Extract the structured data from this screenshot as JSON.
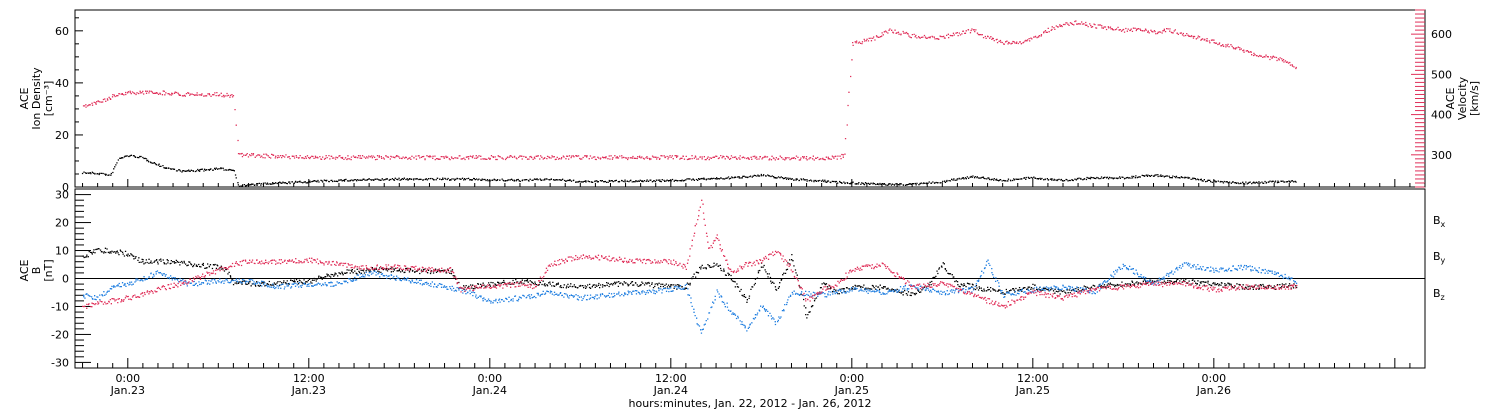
{
  "colors": {
    "black": "#000000",
    "blue": "#1f7ee0",
    "red": "#e0305a"
  },
  "chart_data": [
    {
      "type": "scatter",
      "panel": "top",
      "ylabel": [
        "ACE",
        "Ion Density",
        "[cm⁻³]"
      ],
      "ylabel_right": [
        "ACE",
        "Velocity",
        "[km/s]"
      ],
      "ylim": [
        0,
        68
      ],
      "yticks": [
        0,
        20,
        40,
        60
      ],
      "ylim_right": [
        220,
        660
      ],
      "yticks_right": [
        300,
        400,
        500,
        600
      ],
      "series": [
        {
          "measure": "ion density",
          "color": "#000000",
          "axis": "left",
          "points": [
            [
              -3.0,
              5.5
            ],
            [
              -1.6,
              5.0
            ],
            [
              -1.2,
              4.2
            ],
            [
              -0.6,
              11.0
            ],
            [
              0.0,
              12.0
            ],
            [
              0.8,
              11.5
            ],
            [
              1.6,
              9.5
            ],
            [
              2.4,
              7.5
            ],
            [
              3.6,
              6.0
            ],
            [
              5.0,
              6.5
            ],
            [
              6.0,
              7.0
            ],
            [
              7.0,
              6.5
            ],
            [
              7.3,
              0.5
            ],
            [
              10.0,
              1.5
            ],
            [
              14.0,
              2.5
            ],
            [
              18.0,
              3.0
            ],
            [
              22.0,
              3.0
            ],
            [
              26.0,
              2.5
            ],
            [
              28.0,
              3.0
            ],
            [
              30.0,
              2.0
            ],
            [
              36.0,
              2.5
            ],
            [
              40.0,
              3.5
            ],
            [
              42.0,
              4.5
            ],
            [
              44.0,
              3.0
            ],
            [
              48.0,
              1.5
            ],
            [
              50.0,
              1.0
            ],
            [
              52.0,
              1.0
            ],
            [
              54.0,
              2.0
            ],
            [
              56.0,
              4.0
            ],
            [
              58.0,
              2.5
            ],
            [
              60.0,
              3.5
            ],
            [
              62.0,
              2.5
            ],
            [
              64.0,
              3.5
            ],
            [
              66.0,
              3.5
            ],
            [
              68.0,
              4.5
            ],
            [
              70.0,
              3.5
            ],
            [
              72.0,
              2.0
            ],
            [
              74.0,
              1.5
            ],
            [
              76.0,
              2.0
            ],
            [
              77.5,
              2.0
            ]
          ]
        },
        {
          "measure": "velocity",
          "color": "#e0305a",
          "axis": "right",
          "points": [
            [
              -3.0,
              420
            ],
            [
              -2.0,
              430
            ],
            [
              -1.0,
              445
            ],
            [
              0.0,
              455
            ],
            [
              2.0,
              455
            ],
            [
              4.0,
              450
            ],
            [
              6.0,
              450
            ],
            [
              7.0,
              445
            ],
            [
              7.3,
              300
            ],
            [
              12.0,
              293
            ],
            [
              18.0,
              293
            ],
            [
              24.0,
              293
            ],
            [
              30.0,
              293
            ],
            [
              36.0,
              293
            ],
            [
              40.0,
              293
            ],
            [
              44.0,
              292
            ],
            [
              46.0,
              292
            ],
            [
              47.0,
              292
            ],
            [
              47.5,
              300
            ],
            [
              48.0,
              575
            ],
            [
              49.5,
              590
            ],
            [
              50.5,
              610
            ],
            [
              52.0,
              595
            ],
            [
              53.5,
              590
            ],
            [
              55.0,
              600
            ],
            [
              56.0,
              610
            ],
            [
              57.0,
              590
            ],
            [
              58.0,
              580
            ],
            [
              59.0,
              575
            ],
            [
              60.0,
              590
            ],
            [
              61.0,
              610
            ],
            [
              62.0,
              625
            ],
            [
              63.0,
              630
            ],
            [
              64.0,
              620
            ],
            [
              65.0,
              615
            ],
            [
              66.0,
              610
            ],
            [
              67.0,
              610
            ],
            [
              68.0,
              605
            ],
            [
              69.0,
              610
            ],
            [
              70.0,
              600
            ],
            [
              71.0,
              590
            ],
            [
              72.0,
              580
            ],
            [
              73.0,
              570
            ],
            [
              74.0,
              560
            ],
            [
              75.0,
              545
            ],
            [
              76.0,
              540
            ],
            [
              77.0,
              530
            ],
            [
              77.5,
              510
            ]
          ]
        }
      ]
    },
    {
      "type": "scatter",
      "panel": "bottom",
      "ylabel": [
        "ACE",
        "B",
        "[nT]"
      ],
      "ylim": [
        -32,
        32
      ],
      "yticks": [
        -30,
        -20,
        -10,
        0,
        10,
        20,
        30
      ],
      "legend_position": "right",
      "series": [
        {
          "name": "Bx",
          "color": "#000000",
          "points": [
            [
              -3.0,
              8.0
            ],
            [
              -2.0,
              10.0
            ],
            [
              -1.0,
              10.0
            ],
            [
              0.0,
              8.5
            ],
            [
              1.0,
              6.0
            ],
            [
              3.0,
              6.0
            ],
            [
              5.0,
              4.5
            ],
            [
              6.0,
              4.0
            ],
            [
              6.6,
              2.5
            ],
            [
              7.0,
              -1.5
            ],
            [
              9.0,
              -2.0
            ],
            [
              12.0,
              -1.0
            ],
            [
              14.0,
              2.0
            ],
            [
              16.0,
              3.0
            ],
            [
              18.0,
              3.0
            ],
            [
              20.0,
              2.5
            ],
            [
              21.5,
              2.5
            ],
            [
              22.0,
              -3.5
            ],
            [
              24.0,
              -2.0
            ],
            [
              26.0,
              -1.0
            ],
            [
              28.0,
              -2.0
            ],
            [
              30.0,
              -3.0
            ],
            [
              32.0,
              -2.0
            ],
            [
              34.0,
              -2.0
            ],
            [
              36.0,
              -3.0
            ],
            [
              37.0,
              -3.0
            ],
            [
              38.0,
              4.0
            ],
            [
              39.0,
              5.0
            ],
            [
              40.0,
              0.0
            ],
            [
              41.0,
              -8.0
            ],
            [
              42.0,
              5.0
            ],
            [
              43.0,
              -4.0
            ],
            [
              44.0,
              8.0
            ],
            [
              45.0,
              -14.0
            ],
            [
              46.0,
              -2.0
            ],
            [
              47.0,
              -5.0
            ],
            [
              48.0,
              -3.0
            ],
            [
              50.0,
              -3.0
            ],
            [
              52.0,
              -6.0
            ],
            [
              53.0,
              -3.0
            ],
            [
              54.0,
              5.0
            ],
            [
              55.0,
              -2.0
            ],
            [
              56.0,
              -3.0
            ],
            [
              58.0,
              -5.0
            ],
            [
              60.0,
              -3.0
            ],
            [
              62.0,
              -5.0
            ],
            [
              64.0,
              -3.0
            ],
            [
              66.0,
              -2.0
            ],
            [
              68.0,
              -1.0
            ],
            [
              70.0,
              -1.0
            ],
            [
              72.0,
              -2.0
            ],
            [
              74.0,
              -3.0
            ],
            [
              76.0,
              -3.0
            ],
            [
              77.5,
              -2.5
            ]
          ]
        },
        {
          "name": "By",
          "color": "#1f7ee0",
          "points": [
            [
              -3.0,
              -6.0
            ],
            [
              -2.0,
              -7.0
            ],
            [
              -1.0,
              -3.0
            ],
            [
              0.0,
              -2.0
            ],
            [
              1.0,
              0.0
            ],
            [
              2.0,
              2.0
            ],
            [
              3.0,
              0.0
            ],
            [
              4.0,
              -2.0
            ],
            [
              6.0,
              -1.0
            ],
            [
              8.0,
              -1.0
            ],
            [
              10.0,
              -3.0
            ],
            [
              12.0,
              -2.0
            ],
            [
              14.0,
              -2.0
            ],
            [
              16.0,
              2.0
            ],
            [
              18.0,
              0.0
            ],
            [
              20.0,
              -2.0
            ],
            [
              22.0,
              -4.0
            ],
            [
              24.0,
              -8.0
            ],
            [
              26.0,
              -7.0
            ],
            [
              28.0,
              -5.0
            ],
            [
              30.0,
              -7.0
            ],
            [
              32.0,
              -6.0
            ],
            [
              34.0,
              -5.0
            ],
            [
              36.0,
              -4.0
            ],
            [
              37.0,
              -3.0
            ],
            [
              38.0,
              -20.0
            ],
            [
              39.0,
              -5.0
            ],
            [
              40.0,
              -12.0
            ],
            [
              41.0,
              -18.0
            ],
            [
              42.0,
              -10.0
            ],
            [
              43.0,
              -16.0
            ],
            [
              44.0,
              -5.0
            ],
            [
              46.0,
              -6.0
            ],
            [
              48.0,
              -4.0
            ],
            [
              50.0,
              -5.0
            ],
            [
              52.0,
              -3.0
            ],
            [
              54.0,
              -5.0
            ],
            [
              56.0,
              -4.0
            ],
            [
              57.0,
              6.0
            ],
            [
              58.0,
              -6.0
            ],
            [
              60.0,
              -4.0
            ],
            [
              62.0,
              -3.0
            ],
            [
              64.0,
              -5.0
            ],
            [
              66.0,
              5.0
            ],
            [
              68.0,
              -2.0
            ],
            [
              70.0,
              5.0
            ],
            [
              72.0,
              3.0
            ],
            [
              74.0,
              4.0
            ],
            [
              76.0,
              2.0
            ],
            [
              77.5,
              -1.0
            ]
          ]
        },
        {
          "name": "Bz",
          "color": "#e0305a",
          "points": [
            [
              -3.0,
              -10.0
            ],
            [
              -2.0,
              -9.0
            ],
            [
              -1.0,
              -8.0
            ],
            [
              0.0,
              -7.0
            ],
            [
              2.0,
              -4.0
            ],
            [
              4.0,
              -1.0
            ],
            [
              6.0,
              3.0
            ],
            [
              7.0,
              5.0
            ],
            [
              8.0,
              6.0
            ],
            [
              10.0,
              6.0
            ],
            [
              12.0,
              6.5
            ],
            [
              14.0,
              5.0
            ],
            [
              16.0,
              4.0
            ],
            [
              18.0,
              4.0
            ],
            [
              20.0,
              3.0
            ],
            [
              21.5,
              3.0
            ],
            [
              22.0,
              -4.0
            ],
            [
              24.0,
              -3.0
            ],
            [
              26.0,
              -2.0
            ],
            [
              27.0,
              -3.0
            ],
            [
              28.0,
              5.0
            ],
            [
              30.0,
              8.0
            ],
            [
              32.0,
              7.0
            ],
            [
              34.0,
              6.0
            ],
            [
              36.0,
              6.0
            ],
            [
              37.0,
              4.0
            ],
            [
              38.0,
              28.0
            ],
            [
              38.5,
              10.0
            ],
            [
              39.0,
              15.0
            ],
            [
              40.0,
              2.0
            ],
            [
              41.0,
              5.0
            ],
            [
              42.0,
              6.0
            ],
            [
              43.0,
              10.0
            ],
            [
              44.0,
              3.0
            ],
            [
              45.0,
              -8.0
            ],
            [
              46.0,
              -4.0
            ],
            [
              47.0,
              -2.0
            ],
            [
              48.0,
              3.0
            ],
            [
              50.0,
              5.0
            ],
            [
              52.0,
              -3.0
            ],
            [
              54.0,
              -2.0
            ],
            [
              56.0,
              -6.0
            ],
            [
              58.0,
              -10.0
            ],
            [
              60.0,
              -5.0
            ],
            [
              62.0,
              -7.0
            ],
            [
              64.0,
              -4.0
            ],
            [
              66.0,
              -3.0
            ],
            [
              68.0,
              -2.0
            ],
            [
              70.0,
              -2.0
            ],
            [
              72.0,
              -4.0
            ],
            [
              74.0,
              -3.0
            ],
            [
              76.0,
              -3.0
            ],
            [
              77.5,
              -3.0
            ]
          ]
        }
      ]
    }
  ],
  "x_axis": {
    "unit": "hours since Jan. 23 0:00",
    "xlim": [
      -3.5,
      86
    ],
    "ticks": [
      {
        "hour": 0,
        "time": "0:00",
        "date": "Jan.23"
      },
      {
        "hour": 12,
        "time": "12:00",
        "date": "Jan.23"
      },
      {
        "hour": 24,
        "time": "0:00",
        "date": "Jan.24"
      },
      {
        "hour": 36,
        "time": "12:00",
        "date": "Jan.24"
      },
      {
        "hour": 48,
        "time": "0:00",
        "date": "Jan.25"
      },
      {
        "hour": 60,
        "time": "12:00",
        "date": "Jan.25"
      },
      {
        "hour": 72,
        "time": "0:00",
        "date": "Jan.26"
      }
    ],
    "xlabel": "hours:minutes, Jan. 22, 2012 - Jan. 26, 2012"
  },
  "legend": [
    "Bx",
    "By",
    "Bz"
  ]
}
